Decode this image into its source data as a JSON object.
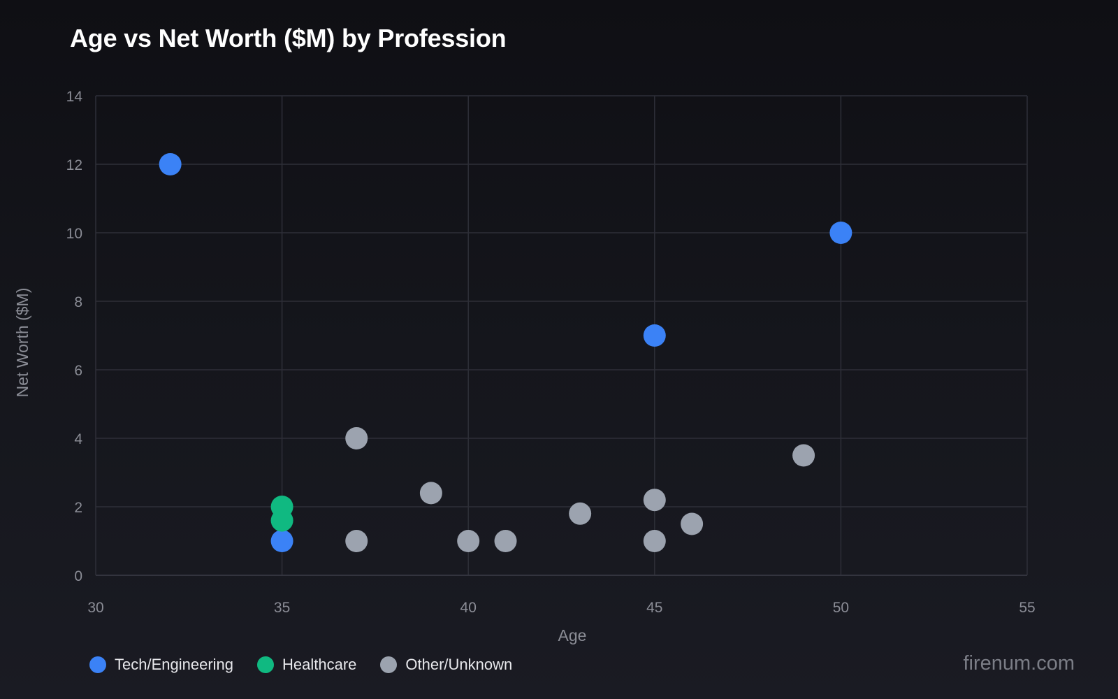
{
  "header": {
    "title": "Age vs Net Worth ($M) by Profession"
  },
  "axes": {
    "xlabel": "Age",
    "ylabel": "Net Worth ($M)",
    "xticks": [
      "30",
      "35",
      "40",
      "45",
      "50",
      "55"
    ],
    "yticks": [
      "0",
      "2",
      "4",
      "6",
      "8",
      "10",
      "12",
      "14"
    ]
  },
  "legend": {
    "items": [
      {
        "label": "Tech/Engineering",
        "color": "#3b82f6"
      },
      {
        "label": "Healthcare",
        "color": "#10b981"
      },
      {
        "label": "Other/Unknown",
        "color": "#9ca3af"
      }
    ]
  },
  "watermark": "firenum.com",
  "colors": {
    "background": "#15161c",
    "grid": "#2e2f38",
    "tick_text": "#8b8d96",
    "tech": "#3b82f6",
    "healthcare": "#10b981",
    "other": "#9ca3af"
  },
  "chart_data": {
    "type": "scatter",
    "title": "Age vs Net Worth ($M) by Profession",
    "xlabel": "Age",
    "ylabel": "Net Worth ($M)",
    "xlim": [
      30,
      55
    ],
    "ylim": [
      0,
      14
    ],
    "grid": true,
    "legend_position": "bottom-left",
    "series": [
      {
        "name": "Tech/Engineering",
        "color": "#3b82f6",
        "points": [
          {
            "x": 32,
            "y": 12.0
          },
          {
            "x": 50,
            "y": 10.0
          },
          {
            "x": 45,
            "y": 7.0
          },
          {
            "x": 35,
            "y": 1.0
          }
        ]
      },
      {
        "name": "Healthcare",
        "color": "#10b981",
        "points": [
          {
            "x": 35,
            "y": 2.0
          },
          {
            "x": 35,
            "y": 1.6
          }
        ]
      },
      {
        "name": "Other/Unknown",
        "color": "#9ca3af",
        "points": [
          {
            "x": 37,
            "y": 4.0
          },
          {
            "x": 39,
            "y": 2.4
          },
          {
            "x": 37,
            "y": 1.0
          },
          {
            "x": 40,
            "y": 1.0
          },
          {
            "x": 41,
            "y": 1.0
          },
          {
            "x": 43,
            "y": 1.8
          },
          {
            "x": 45,
            "y": 2.2
          },
          {
            "x": 45,
            "y": 1.0
          },
          {
            "x": 46,
            "y": 1.5
          },
          {
            "x": 49,
            "y": 3.5
          }
        ]
      }
    ]
  }
}
